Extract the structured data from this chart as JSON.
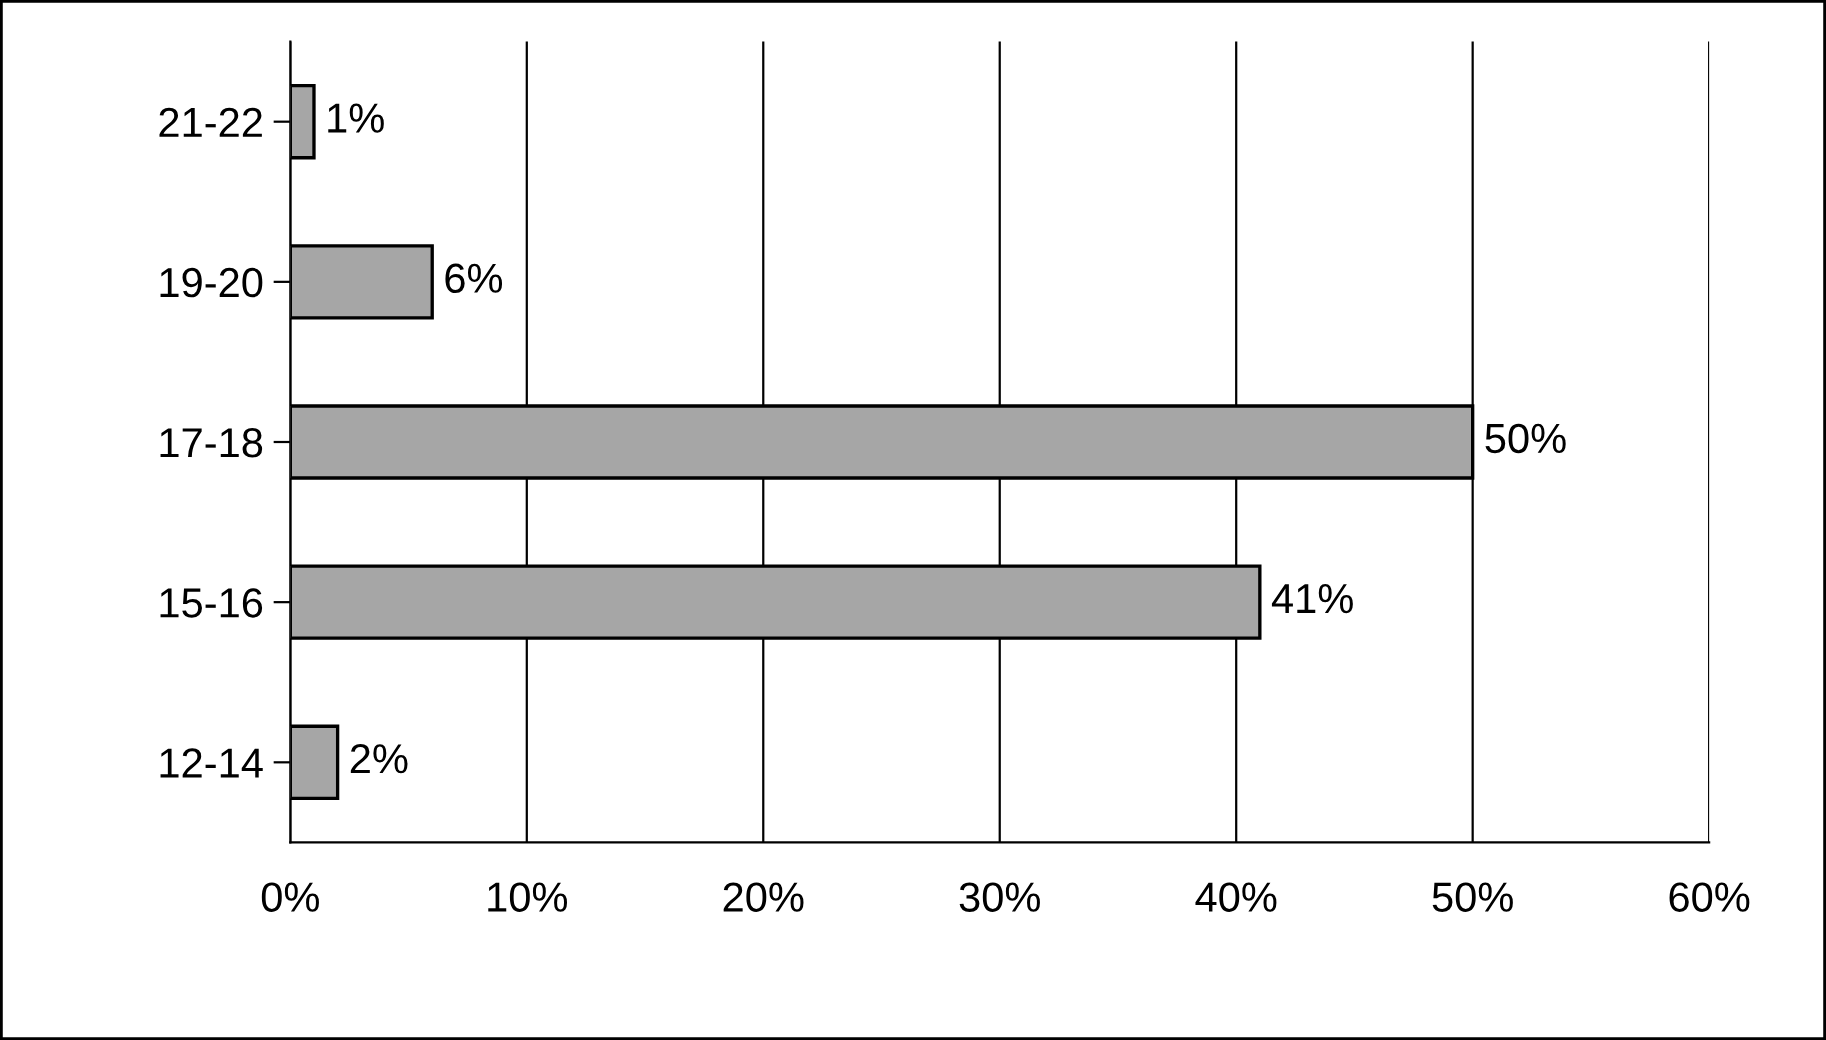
{
  "chart_data": {
    "type": "bar",
    "orientation": "horizontal",
    "categories": [
      "21-22",
      "19-20",
      "17-18",
      "15-16",
      "12-14"
    ],
    "values": [
      1,
      6,
      50,
      41,
      2
    ],
    "value_labels": [
      "1%",
      "6%",
      "50%",
      "41%",
      "2%"
    ],
    "color": "#a6a6a6",
    "xlim": [
      0,
      60
    ],
    "xticks": [
      {
        "value": 0,
        "label": "0%"
      },
      {
        "value": 10,
        "label": "10%"
      },
      {
        "value": 20,
        "label": "20%"
      },
      {
        "value": 30,
        "label": "30%"
      },
      {
        "value": 40,
        "label": "40%"
      },
      {
        "value": 50,
        "label": "50%"
      },
      {
        "value": 60,
        "label": "60%"
      }
    ],
    "grid": "x"
  }
}
